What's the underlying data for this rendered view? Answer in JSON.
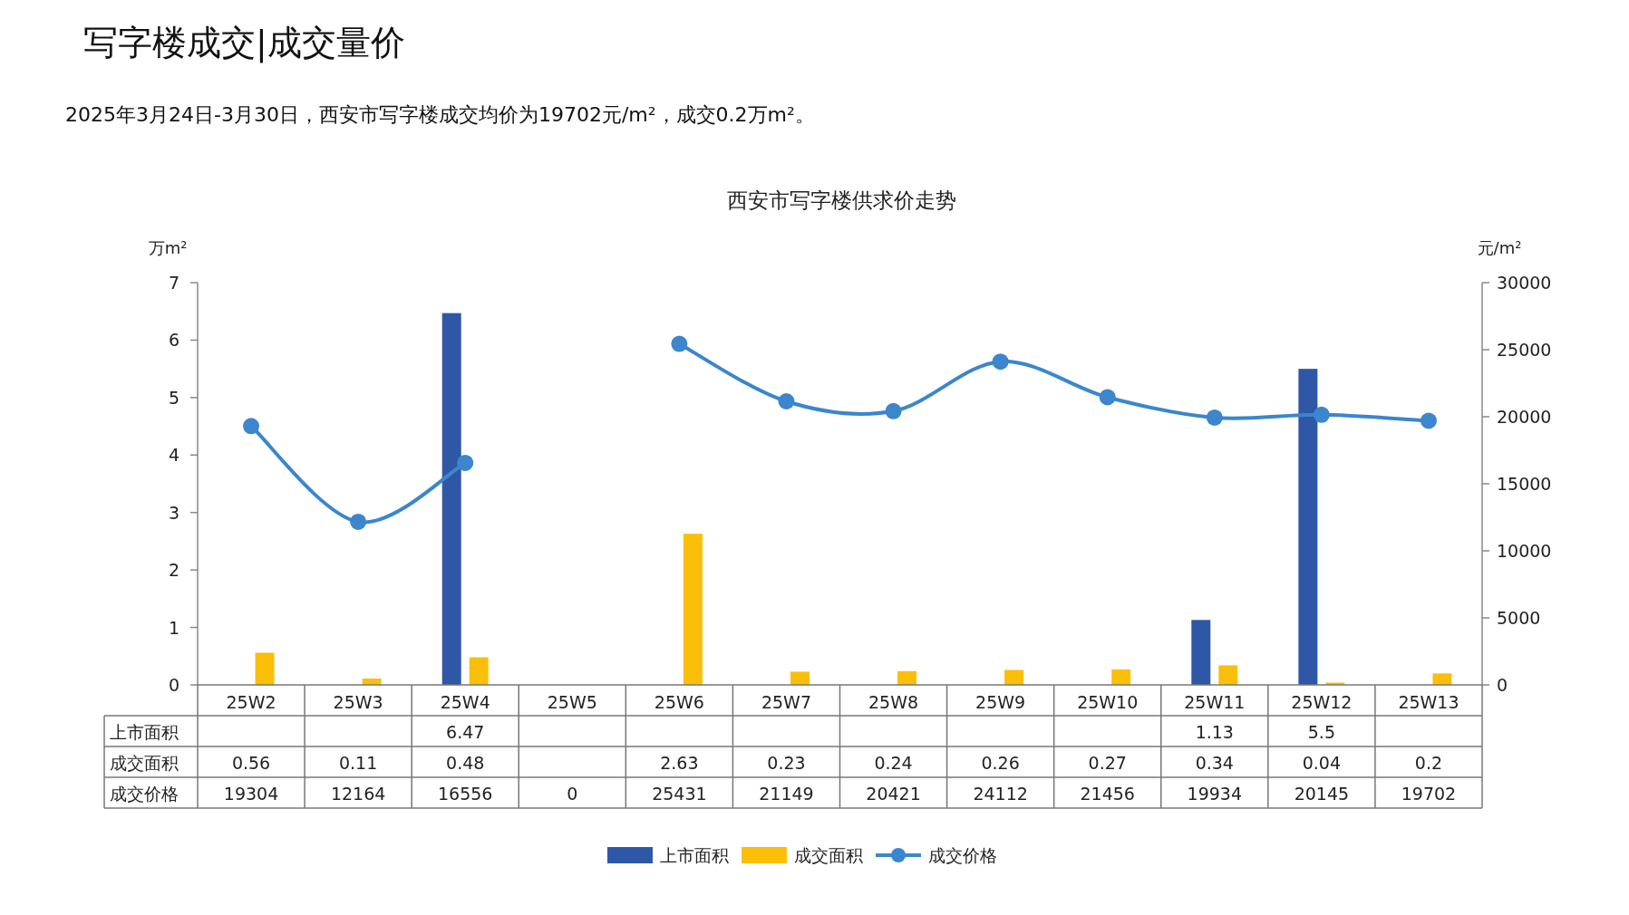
{
  "chart_data": {
    "type": "bar",
    "title": "西安市写字楼供求价走势",
    "subtitle": "2025年3月24日-3月30日，西安市写字楼成交均价为19702元/m²，成交0.2万m²。",
    "annotations": [
      "写字楼成交|成交量价"
    ],
    "ylabel": "万m²",
    "y2label": "元/m²",
    "categories": [
      "25W2",
      "25W3",
      "25W4",
      "25W5",
      "25W6",
      "25W7",
      "25W8",
      "25W9",
      "25W10",
      "25W11",
      "25W12",
      "25W13"
    ],
    "series": [
      {
        "name": "上市面积",
        "color": "#2e57a6",
        "values": [
          null,
          null,
          6.47,
          null,
          null,
          null,
          null,
          null,
          null,
          1.13,
          5.5,
          null
        ],
        "value_labels": [
          null,
          null,
          "6.47",
          null,
          null,
          null,
          null,
          null,
          null,
          "1.13",
          "5.5",
          null
        ]
      },
      {
        "name": "成交面积",
        "color": "#fbbf0a",
        "values": [
          0.56,
          0.11,
          0.48,
          null,
          2.63,
          0.23,
          0.24,
          0.26,
          0.27,
          0.34,
          0.04,
          0.2
        ],
        "value_labels": [
          "0.56",
          "0.11",
          "0.48",
          null,
          "2.63",
          "0.23",
          "0.24",
          "0.26",
          "0.27",
          "0.34",
          "0.04",
          "0.2"
        ]
      },
      {
        "name": "成交价格",
        "type": "line",
        "axis": "y2",
        "color": "#3b86cc",
        "values": [
          19304,
          12164,
          16556,
          null,
          25431,
          21149,
          20421,
          24112,
          21456,
          19934,
          20145,
          19702
        ],
        "value_labels": [
          "19304",
          "12164",
          "16556",
          "0",
          "25431",
          "21149",
          "20421",
          "24112",
          "21456",
          "19934",
          "20145",
          "19702"
        ]
      }
    ],
    "ylim": [
      0,
      7
    ],
    "yticks": [
      0,
      1,
      2,
      3,
      4,
      5,
      6,
      7
    ],
    "y2lim": [
      0,
      30000
    ],
    "y2ticks": [
      0,
      5000,
      10000,
      15000,
      20000,
      25000,
      30000
    ],
    "grid": false,
    "legend": "bottom",
    "marker": "circle"
  }
}
